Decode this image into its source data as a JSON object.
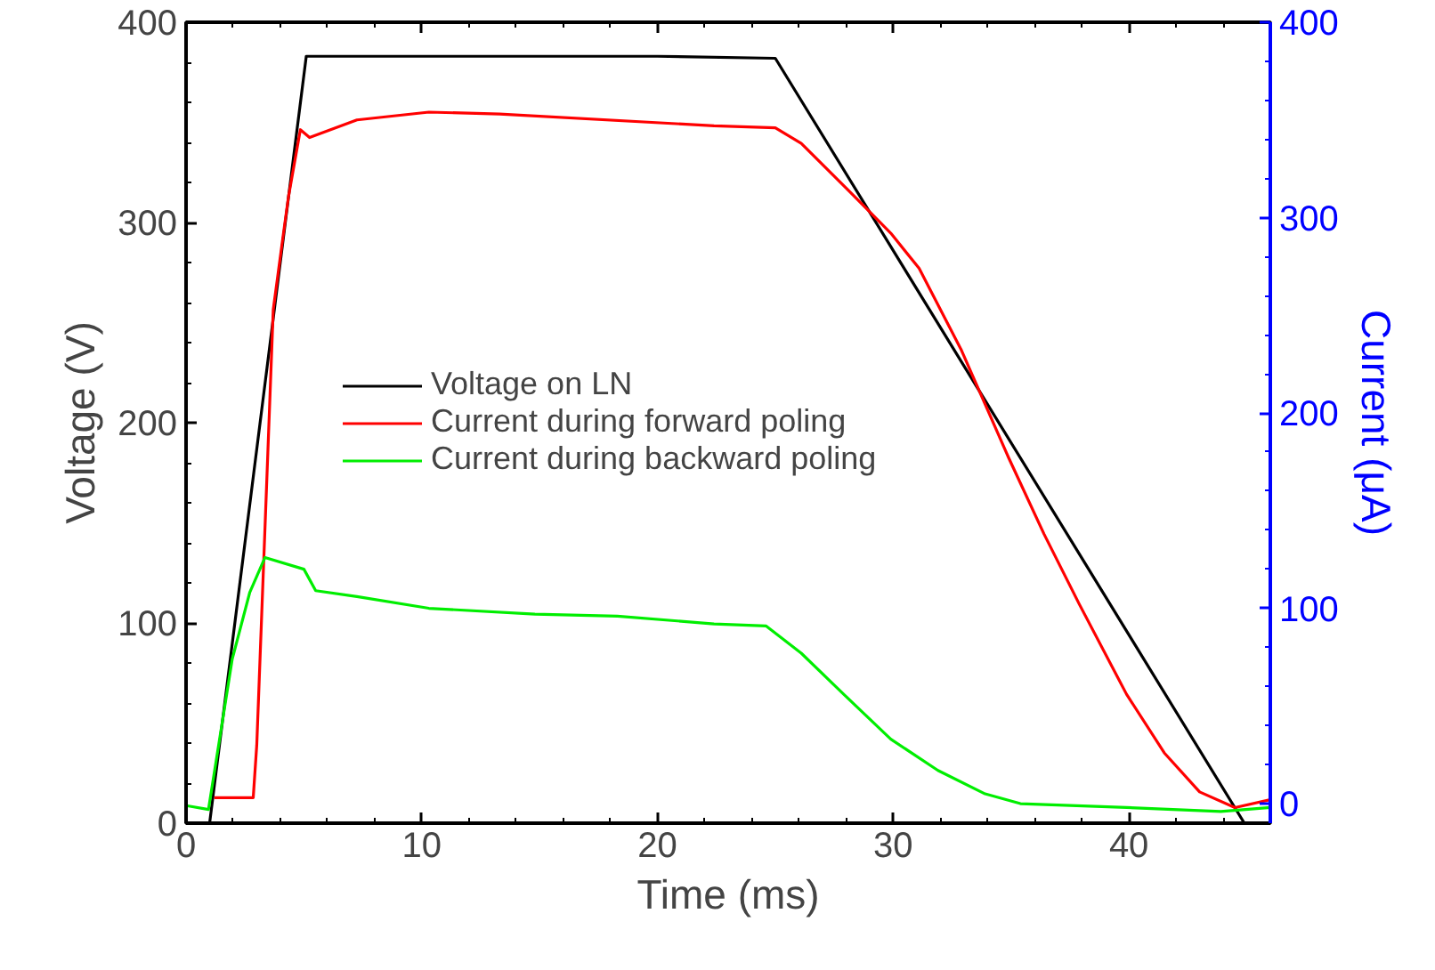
{
  "chart_data": {
    "type": "line",
    "xlabel": "Time (ms)",
    "ylabel": "Voltage (V)",
    "y2label": "Current (μA)",
    "xlim": [
      0,
      46
    ],
    "xticks": [
      0,
      10,
      20,
      30,
      40
    ],
    "ylim": [
      0,
      400
    ],
    "yticks": [
      0,
      100,
      200,
      300,
      400
    ],
    "y2lim": [
      -10,
      400
    ],
    "y2ticks": [
      0,
      100,
      200,
      300,
      400
    ],
    "legend": "center left",
    "grid": false,
    "line_style": "solid",
    "series": [
      {
        "name": "Voltage on LN",
        "color": "#000000",
        "x": [
          1.0,
          5.1,
          10,
          15,
          20,
          25.0,
          44.9,
          46
        ],
        "values": [
          0,
          383,
          383,
          383,
          383,
          382,
          0,
          0
        ]
      },
      {
        "name": "Current during forward poling",
        "color": "#ff0000",
        "axis": "y2",
        "x": [
          1.2,
          2.85,
          3.0,
          3.7,
          4.1,
          4.35,
          4.85,
          5.24,
          7.25,
          10.3,
          13.3,
          22.4,
          25.0,
          26.1,
          28.1,
          29.9,
          31.1,
          32.9,
          34.9,
          36.4,
          37.9,
          39.9,
          41.5,
          43.0,
          44.5,
          46
        ],
        "values": [
          3,
          3,
          30,
          253,
          289,
          311,
          345,
          341,
          350,
          354,
          353,
          347,
          346,
          338,
          314,
          292,
          274,
          232,
          177,
          138,
          102,
          56,
          26,
          6,
          -2,
          2
        ]
      },
      {
        "name": "Current during backward poling",
        "color": "#00ee00",
        "axis": "y2",
        "x": [
          0,
          0.95,
          1.96,
          2.7,
          3.35,
          5.0,
          5.5,
          7.25,
          10.3,
          14.8,
          18.3,
          22.4,
          24.6,
          26.1,
          27.9,
          29.9,
          31.9,
          33.9,
          35.4,
          39.9,
          43.9,
          46
        ],
        "values": [
          -1,
          -3,
          74,
          108,
          126,
          120,
          109,
          106,
          100,
          97,
          96,
          92,
          91,
          77,
          56,
          33,
          17,
          5,
          0,
          -2,
          -4,
          -2
        ]
      }
    ]
  }
}
